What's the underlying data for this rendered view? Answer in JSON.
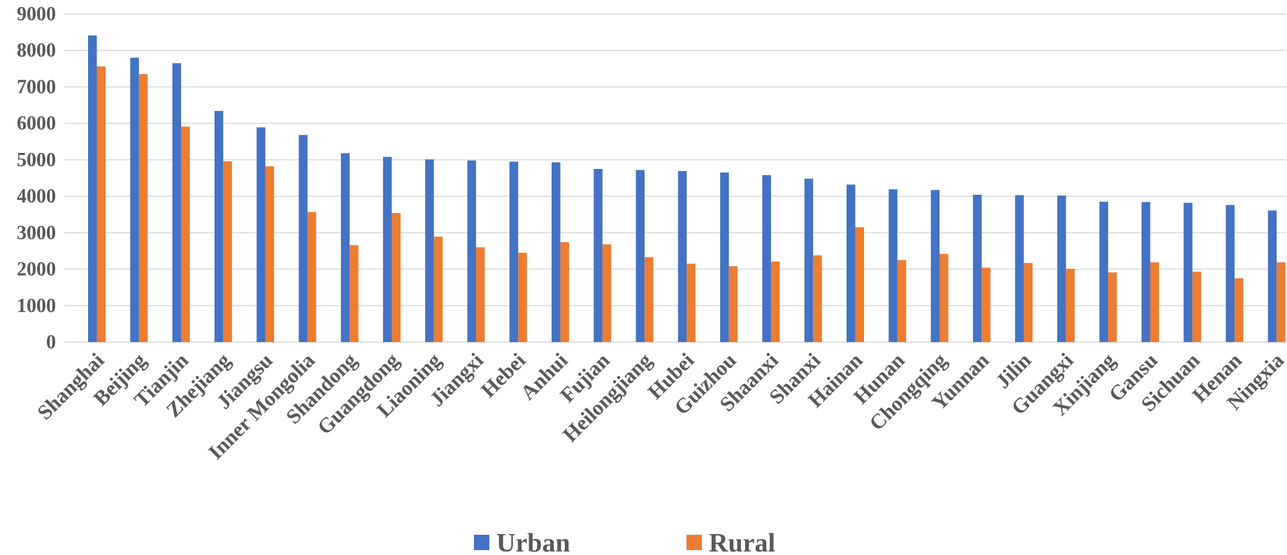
{
  "chart_data": {
    "type": "bar",
    "title": "",
    "xlabel": "",
    "ylabel": "",
    "ylim": [
      0,
      9000
    ],
    "yticks": [
      0,
      1000,
      2000,
      3000,
      4000,
      5000,
      6000,
      7000,
      8000,
      9000
    ],
    "grid": "horizontal",
    "legend_position": "bottom",
    "categories": [
      "Shanghai",
      "Beijing",
      "Tianjin",
      "Zhejiang",
      "Jiangsu",
      "Inner Mongolia",
      "Shandong",
      "Guangdong",
      "Liaoning",
      "Jiangxi",
      "Hebei",
      "Anhui",
      "Fujian",
      "Heilongjiang",
      "Hubei",
      "Guizhou",
      "Shaanxi",
      "Shanxi",
      "Hainan",
      "Hunan",
      "Chongqing",
      "Yunnan",
      "Jilin",
      "Guangxi",
      "Xinjiang",
      "Gansu",
      "Sichuan",
      "Henan",
      "Ningxia"
    ],
    "series": [
      {
        "name": "Urban",
        "color": "#4472C4",
        "values": [
          8410,
          7800,
          7650,
          6340,
          5890,
          5680,
          5180,
          5080,
          5010,
          4980,
          4950,
          4930,
          4750,
          4720,
          4690,
          4650,
          4580,
          4480,
          4320,
          4190,
          4170,
          4040,
          4030,
          4020,
          3850,
          3840,
          3820,
          3760,
          3610
        ]
      },
      {
        "name": "Rural",
        "color": "#ED7D31",
        "values": [
          7560,
          7350,
          5910,
          4960,
          4820,
          3570,
          2660,
          3540,
          2890,
          2600,
          2450,
          2740,
          2680,
          2330,
          2150,
          2080,
          2210,
          2380,
          3150,
          2250,
          2420,
          2040,
          2170,
          2010,
          1910,
          2190,
          1930,
          1750,
          2190
        ]
      }
    ]
  }
}
